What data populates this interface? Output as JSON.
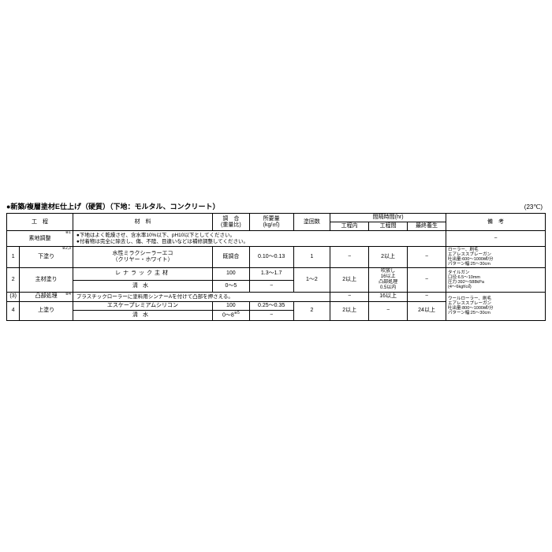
{
  "title": "●新築/複層塗材E仕上げ（硬質）（下地：モルタル、コンクリート）",
  "temp": "(23℃)",
  "headers": {
    "process": "工　程",
    "material": "材　料",
    "mix": "調　合\n(重量比)",
    "amount": "所要量\n(kg/㎡)",
    "coats": "塗回数",
    "interval_top": "間隔時間(hr)",
    "int_in": "工程内",
    "int_between": "工程間",
    "int_final": "最終養生",
    "remarks": "備　考"
  },
  "row0": {
    "process": "素地調整",
    "sup": "※1",
    "note1": "●下地はよく乾燥させ、含水率10%以下、pH10以下としてください。",
    "note2": "●付着物は完全に除去し、傷、不陸、目違いなどは補修調整してください。",
    "dash": "−"
  },
  "row1": {
    "num": "1",
    "process": "下塗り",
    "sup": "※2,3",
    "material": "水性ミラクシーラーエコ\n（クリヤー・ホワイト）",
    "mix": "既調合",
    "amount": "0.10〜0.13",
    "coats": "1",
    "int_in": "−",
    "int_between": "2以上",
    "int_final": "−",
    "remarks": "ローラー、刷毛\nエアレススプレーガン\n吐出量:600〜1000㎖/分\nパターン幅:25〜30cm"
  },
  "row2": {
    "num": "2",
    "process": "主材塗り",
    "mat1": "レナラック主材",
    "mix1": "100",
    "amt1": "1.3〜1.7",
    "mat2": "清水",
    "mix2": "0〜5",
    "amt2": "−",
    "coats": "1〜2",
    "int_in": "2以上",
    "int_between": "吹放し\n16以上\n凸部処理\n0.5以内",
    "int_final": "−",
    "remarks": "タイルガン\n口径:6.5〜10mm\n圧力:392〜588kPa\n(4〜6kgf/㎠)"
  },
  "row3": {
    "num": "(3)",
    "process": "凸部処理",
    "sup": "※4",
    "note": "プラスチックローラーに塗料用シンナーAを付けて凸部を押さえる。",
    "int_in": "−",
    "int_between": "16以上",
    "int_final": "−"
  },
  "row4": {
    "num": "4",
    "process": "上塗り",
    "mat1": "エスケープレミアムシリコン",
    "mix1": "100",
    "amt1": "0.25〜0.35",
    "mat2": "清水",
    "mix2": "0〜8",
    "mix2sup": "※5",
    "amt2": "−",
    "coats": "2",
    "int_in": "2以上",
    "int_between": "−",
    "int_final": "24以上",
    "remarks": "ウールローラー、刷毛\nエアレススプレーガン\n吐出量:800〜1000㎖/分\nパターン幅:25〜30cm"
  }
}
